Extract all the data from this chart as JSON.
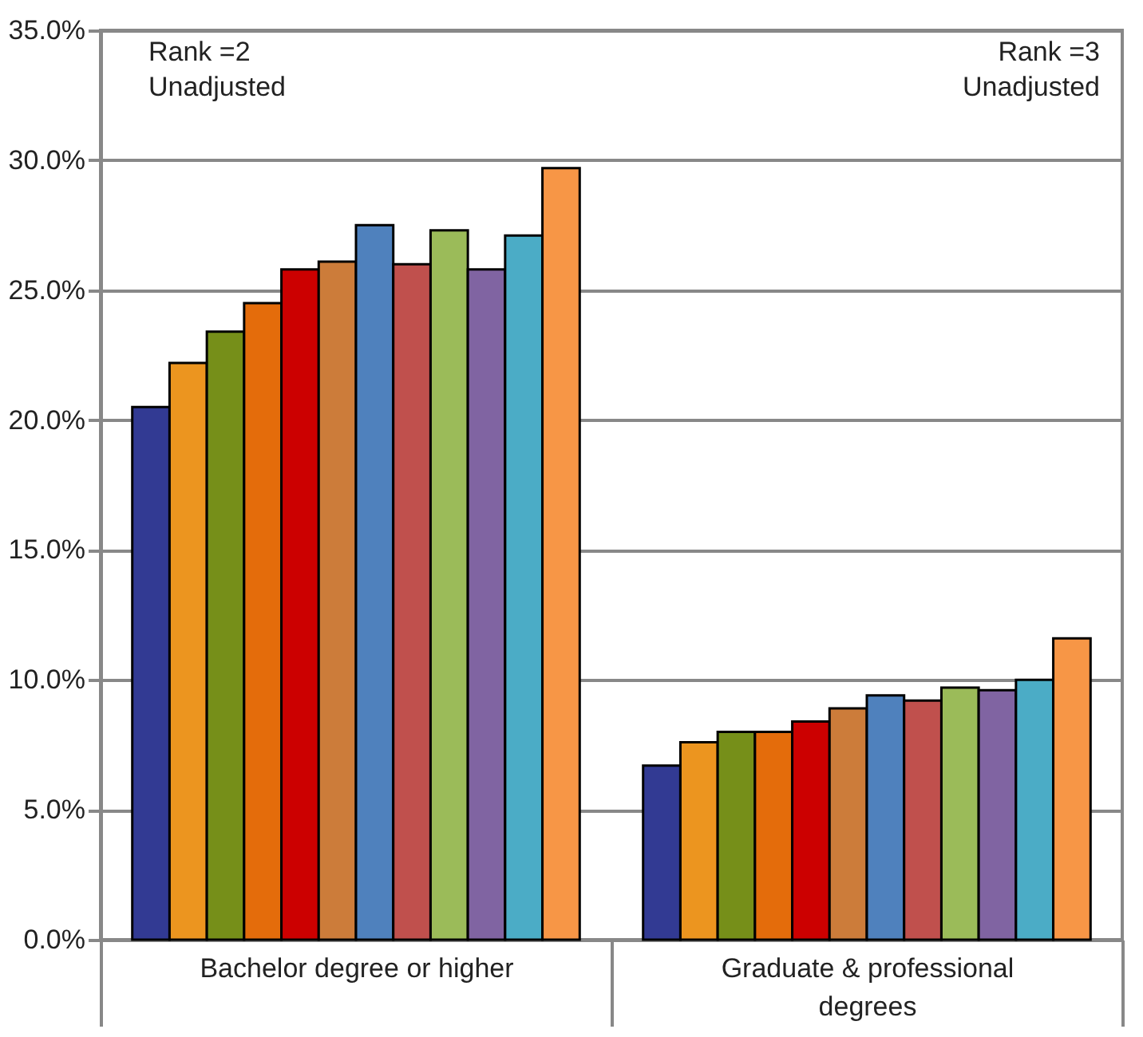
{
  "chart_data": {
    "type": "bar",
    "categories": [
      "Bachelor degree or higher",
      "Graduate & professional degrees"
    ],
    "series": [
      {
        "color": "#323a93",
        "values": [
          20.5,
          6.7
        ]
      },
      {
        "color": "#ec951f",
        "values": [
          22.2,
          7.6
        ]
      },
      {
        "color": "#768f19",
        "values": [
          23.4,
          8.0
        ]
      },
      {
        "color": "#e46c0b",
        "values": [
          24.5,
          8.0
        ]
      },
      {
        "color": "#cc0000",
        "values": [
          25.8,
          8.4
        ]
      },
      {
        "color": "#cc7c3a",
        "values": [
          26.1,
          8.9
        ]
      },
      {
        "color": "#4f81bd",
        "values": [
          27.5,
          9.4
        ]
      },
      {
        "color": "#c0504d",
        "values": [
          26.0,
          9.2
        ]
      },
      {
        "color": "#9bbb59",
        "values": [
          27.3,
          9.7
        ]
      },
      {
        "color": "#8064a2",
        "values": [
          25.8,
          9.6
        ]
      },
      {
        "color": "#4bacc6",
        "values": [
          27.1,
          10.0
        ]
      },
      {
        "color": "#f79646",
        "values": [
          29.7,
          11.6
        ]
      }
    ],
    "ylim": [
      0,
      35
    ],
    "yticks": [
      {
        "value": 0,
        "label": "0.0%"
      },
      {
        "value": 5,
        "label": "5.0%"
      },
      {
        "value": 10,
        "label": "10.0%"
      },
      {
        "value": 15,
        "label": "15.0%"
      },
      {
        "value": 20,
        "label": "20.0%"
      },
      {
        "value": 25,
        "label": "25.0%"
      },
      {
        "value": 30,
        "label": "30.0%"
      },
      {
        "value": 35,
        "label": "35.0%"
      }
    ],
    "annotations": [
      "Rank =2\nUnadjusted",
      "Rank =3\nUnadjusted"
    ],
    "grid": true
  }
}
